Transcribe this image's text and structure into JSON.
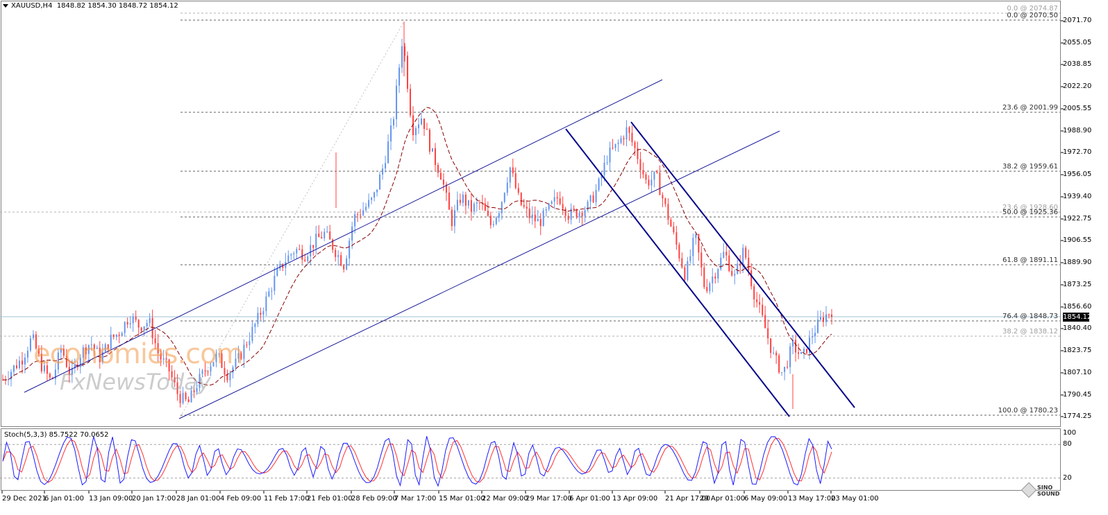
{
  "header": {
    "symbol": "XAUUSD,H4",
    "ohlc": "1848.82 1854.30 1848.72 1854.12"
  },
  "price_axis": [
    "2071.70",
    "2055.05",
    "2038.85",
    "2022.20",
    "2005.55",
    "1988.90",
    "1972.70",
    "1956.05",
    "1939.40",
    "1922.75",
    "1906.55",
    "1889.90",
    "1873.25",
    "1856.60",
    "1840.40",
    "1823.75",
    "1807.10",
    "1790.45",
    "1774.25"
  ],
  "current_price": "1854.12",
  "fib_labels": [
    "0.0 @ 2074.87",
    "0.0 @ 2070.50",
    "23.6 @ 2001.99",
    "38.2 @ 1959.61",
    "23.6 @ 1928.60",
    "50.0 @ 1925.36",
    "61.8 @ 1891.11",
    "76.4 @ 1848.73",
    "38.2 @ 1838.12",
    "100.0 @ 1780.23"
  ],
  "stochastic": {
    "label": "Stoch(5,3,3) 85.7522 70.0652",
    "axis": [
      "100",
      "80",
      "20"
    ]
  },
  "time_axis": [
    "29 Dec 2021",
    "6 Jan 01:00",
    "13 Jan 09:00",
    "20 Jan 17:00",
    "28 Jan 01:00",
    "4 Feb 09:00",
    "11 Feb 17:00",
    "21 Feb 01:00",
    "28 Feb 09:00",
    "7 Mar 17:00",
    "15 Mar 01:00",
    "22 Mar 09:00",
    "29 Mar 17:00",
    "6 Apr 01:00",
    "13 Apr 09:00",
    "21 Apr 17:00",
    "29 Apr 01:00",
    "6 May 09:00",
    "13 May 17:00",
    "23 May 01:00"
  ],
  "watermarks": {
    "brand1": "economies.com",
    "brand2": "FxNewsToday",
    "logo": "SINOSOUND"
  },
  "colors": {
    "bull": "#6495ed",
    "bear": "#ff4040",
    "channel": "#00008b",
    "ma": "#8b0000",
    "stoch_main": "#1a1aff",
    "stoch_signal": "#ff3030"
  },
  "chart_data": {
    "type": "candlestick",
    "symbol": "XAUUSD",
    "timeframe": "H4",
    "ylim": [
      1774.25,
      2071.7
    ],
    "close_path": [
      [
        0,
        1802
      ],
      [
        2,
        1818
      ],
      [
        3,
        1834
      ],
      [
        4,
        1812
      ],
      [
        5,
        1800
      ],
      [
        6,
        1826
      ],
      [
        7,
        1804
      ],
      [
        8,
        1822
      ],
      [
        9,
        1830
      ],
      [
        10,
        1818
      ],
      [
        11,
        1832
      ],
      [
        12,
        1838
      ],
      [
        13,
        1850
      ],
      [
        14,
        1842
      ],
      [
        15,
        1846
      ],
      [
        16,
        1820
      ],
      [
        17,
        1810
      ],
      [
        18,
        1790
      ],
      [
        19,
        1784
      ],
      [
        20,
        1800
      ],
      [
        21,
        1812
      ],
      [
        22,
        1820
      ],
      [
        23,
        1806
      ],
      [
        24,
        1815
      ],
      [
        25,
        1830
      ],
      [
        26,
        1845
      ],
      [
        27,
        1862
      ],
      [
        28,
        1880
      ],
      [
        29,
        1892
      ],
      [
        30,
        1900
      ],
      [
        31,
        1896
      ],
      [
        32,
        1906
      ],
      [
        33,
        1912
      ],
      [
        34,
        1900
      ],
      [
        35,
        1888
      ],
      [
        36,
        1924
      ],
      [
        37,
        1930
      ],
      [
        38,
        1938
      ],
      [
        39,
        1962
      ],
      [
        40,
        1995
      ],
      [
        41,
        2060
      ],
      [
        42,
        1990
      ],
      [
        43,
        2000
      ],
      [
        44,
        1972
      ],
      [
        45,
        1955
      ],
      [
        46,
        1920
      ],
      [
        47,
        1940
      ],
      [
        48,
        1930
      ],
      [
        49,
        1935
      ],
      [
        50,
        1918
      ],
      [
        51,
        1932
      ],
      [
        52,
        1962
      ],
      [
        53,
        1935
      ],
      [
        54,
        1925
      ],
      [
        55,
        1920
      ],
      [
        56,
        1930
      ],
      [
        57,
        1940
      ],
      [
        58,
        1926
      ],
      [
        59,
        1928
      ],
      [
        60,
        1932
      ],
      [
        61,
        1946
      ],
      [
        62,
        1970
      ],
      [
        63,
        1978
      ],
      [
        64,
        1990
      ],
      [
        65,
        1972
      ],
      [
        66,
        1950
      ],
      [
        67,
        1955
      ],
      [
        68,
        1930
      ],
      [
        69,
        1905
      ],
      [
        70,
        1880
      ],
      [
        71,
        1910
      ],
      [
        72,
        1870
      ],
      [
        73,
        1882
      ],
      [
        74,
        1898
      ],
      [
        75,
        1878
      ],
      [
        76,
        1900
      ],
      [
        77,
        1868
      ],
      [
        78,
        1845
      ],
      [
        79,
        1820
      ],
      [
        80,
        1806
      ],
      [
        81,
        1828
      ],
      [
        82,
        1818
      ],
      [
        83,
        1836
      ],
      [
        84,
        1848
      ],
      [
        85,
        1854
      ]
    ],
    "channels": {
      "ascending": "parallel up-channel from 28 Jan low to Apr",
      "descending": "parallel down-channel from 13 Apr high to May"
    }
  }
}
